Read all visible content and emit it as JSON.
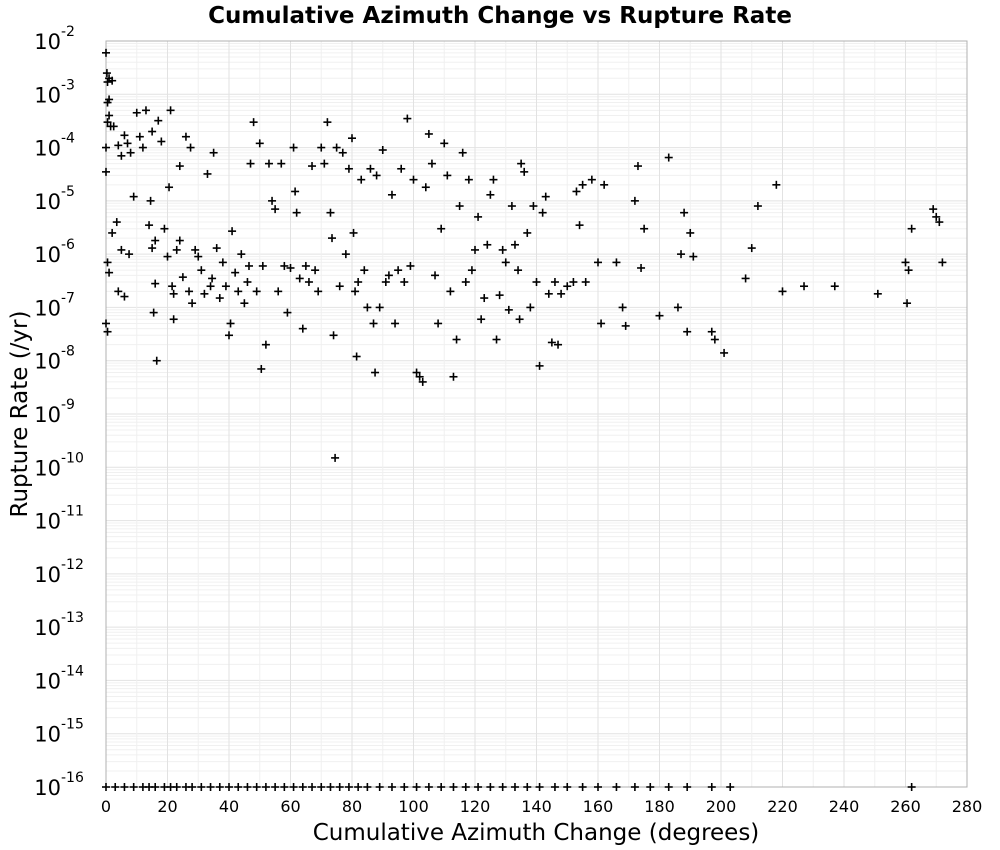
{
  "chart_data": {
    "type": "scatter",
    "title": "Cumulative Azimuth Change vs Rupture Rate",
    "xlabel": "Cumulative Azimuth Change (degrees)",
    "ylabel": "Rupture Rate (/yr)",
    "xlim": [
      0,
      280
    ],
    "ylim": [
      1e-16,
      0.01
    ],
    "y_scale": "log",
    "grid": true,
    "marker": "plus",
    "marker_color": "#000000",
    "x_ticks": [
      "0",
      "20",
      "40",
      "60",
      "80",
      "100",
      "120",
      "140",
      "160",
      "180",
      "200",
      "220",
      "240",
      "260",
      "280"
    ],
    "y_ticks": [
      {
        "base": "10",
        "exp": "-2"
      },
      {
        "base": "10",
        "exp": "-3"
      },
      {
        "base": "10",
        "exp": "-4"
      },
      {
        "base": "10",
        "exp": "-5"
      },
      {
        "base": "10",
        "exp": "-6"
      },
      {
        "base": "10",
        "exp": "-7"
      },
      {
        "base": "10",
        "exp": "-8"
      },
      {
        "base": "10",
        "exp": "-9"
      },
      {
        "base": "10",
        "exp": "-10"
      },
      {
        "base": "10",
        "exp": "-11"
      },
      {
        "base": "10",
        "exp": "-12"
      },
      {
        "base": "10",
        "exp": "-13"
      },
      {
        "base": "10",
        "exp": "-14"
      },
      {
        "base": "10",
        "exp": "-15"
      },
      {
        "base": "10",
        "exp": "-16"
      }
    ],
    "series": [
      {
        "points": [
          [
            0,
            0.006
          ],
          [
            0.3,
            0.0025
          ],
          [
            0.5,
            0.0017
          ],
          [
            1,
            0.002
          ],
          [
            0.5,
            0.0007
          ],
          [
            1,
            0.0004
          ],
          [
            0.5,
            0.0003
          ],
          [
            1.5,
            0.00025
          ],
          [
            2.5,
            0.00025
          ],
          [
            0,
            0.0001
          ],
          [
            0,
            3.5e-05
          ],
          [
            0.5,
            7e-07
          ],
          [
            1,
            4.5e-07
          ],
          [
            0,
            5e-08
          ],
          [
            0.5,
            3.5e-08
          ],
          [
            2,
            2.5e-06
          ],
          [
            3.5,
            4e-06
          ],
          [
            4,
            2e-07
          ],
          [
            5,
            1.2e-06
          ],
          [
            6,
            1.6e-07
          ],
          [
            1,
            0.0008
          ],
          [
            2,
            0.0018
          ],
          [
            4,
            0.00011
          ],
          [
            5,
            7e-05
          ],
          [
            6,
            0.00017
          ],
          [
            7,
            0.00012
          ],
          [
            7.5,
            1e-06
          ],
          [
            8,
            8e-05
          ],
          [
            9,
            1.2e-05
          ],
          [
            10,
            0.00045
          ],
          [
            11,
            0.00016
          ],
          [
            12,
            0.0001
          ],
          [
            13,
            0.0005
          ],
          [
            14,
            3.5e-06
          ],
          [
            14.5,
            1e-05
          ],
          [
            15,
            0.0002
          ],
          [
            15,
            1.3e-06
          ],
          [
            15.5,
            8e-08
          ],
          [
            16,
            2.8e-07
          ],
          [
            16.5,
            1e-08
          ],
          [
            16,
            1.8e-06
          ],
          [
            17,
            0.00032
          ],
          [
            18,
            0.00013
          ],
          [
            19,
            3e-06
          ],
          [
            20,
            9e-07
          ],
          [
            20.5,
            1.8e-05
          ],
          [
            21,
            0.0005
          ],
          [
            21.5,
            2.5e-07
          ],
          [
            22,
            1.8e-07
          ],
          [
            22,
            6e-08
          ],
          [
            23,
            1.2e-06
          ],
          [
            24,
            1.8e-06
          ],
          [
            24,
            4.5e-05
          ],
          [
            25,
            3.7e-07
          ],
          [
            26,
            0.00016
          ],
          [
            27,
            2e-07
          ],
          [
            27.5,
            0.0001
          ],
          [
            28,
            1.2e-07
          ],
          [
            29,
            1.2e-06
          ],
          [
            30,
            9e-07
          ],
          [
            31,
            5e-07
          ],
          [
            32,
            1.8e-07
          ],
          [
            33,
            3.2e-05
          ],
          [
            34,
            2.5e-07
          ],
          [
            34.5,
            3.5e-07
          ],
          [
            35,
            8e-05
          ],
          [
            36,
            1.3e-06
          ],
          [
            37,
            1.5e-07
          ],
          [
            38,
            7e-07
          ],
          [
            39,
            2.5e-07
          ],
          [
            40,
            3e-08
          ],
          [
            40.5,
            5e-08
          ],
          [
            41,
            2.7e-06
          ],
          [
            42,
            4.5e-07
          ],
          [
            43,
            2e-07
          ],
          [
            44,
            1e-06
          ],
          [
            45,
            1.2e-07
          ],
          [
            46,
            3e-07
          ],
          [
            46.5,
            6e-07
          ],
          [
            47,
            5e-05
          ],
          [
            48,
            0.0003
          ],
          [
            49,
            2e-07
          ],
          [
            50,
            0.00012
          ],
          [
            50.5,
            7e-09
          ],
          [
            51,
            6e-07
          ],
          [
            52,
            2e-08
          ],
          [
            53,
            5e-05
          ],
          [
            54,
            1e-05
          ],
          [
            55,
            7e-06
          ],
          [
            56,
            2e-07
          ],
          [
            57,
            5e-05
          ],
          [
            58,
            6e-07
          ],
          [
            59,
            8e-08
          ],
          [
            60,
            5.5e-07
          ],
          [
            61,
            0.0001
          ],
          [
            61.5,
            1.5e-05
          ],
          [
            62,
            6e-06
          ],
          [
            63,
            3.5e-07
          ],
          [
            64,
            4e-08
          ],
          [
            65,
            6e-07
          ],
          [
            66,
            3e-07
          ],
          [
            67,
            4.5e-05
          ],
          [
            68,
            5e-07
          ],
          [
            69,
            2e-07
          ],
          [
            70,
            0.0001
          ],
          [
            71,
            5e-05
          ],
          [
            72,
            0.0003
          ],
          [
            73,
            6e-06
          ],
          [
            73.5,
            2e-06
          ],
          [
            74,
            3e-08
          ],
          [
            74.5,
            1.5e-10
          ],
          [
            75,
            0.0001
          ],
          [
            76,
            2.5e-07
          ],
          [
            77,
            8e-05
          ],
          [
            78,
            1e-06
          ],
          [
            79,
            4e-05
          ],
          [
            80,
            0.00015
          ],
          [
            80.5,
            2.5e-06
          ],
          [
            81,
            2e-07
          ],
          [
            81.5,
            1.2e-08
          ],
          [
            82,
            3e-07
          ],
          [
            83,
            2.5e-05
          ],
          [
            84,
            5e-07
          ],
          [
            85,
            1e-07
          ],
          [
            86,
            4e-05
          ],
          [
            87,
            5e-08
          ],
          [
            87.5,
            6e-09
          ],
          [
            88,
            3e-05
          ],
          [
            89,
            1e-07
          ],
          [
            90,
            9e-05
          ],
          [
            91,
            3e-07
          ],
          [
            92,
            4e-07
          ],
          [
            93,
            1.3e-05
          ],
          [
            94,
            5e-08
          ],
          [
            95,
            5e-07
          ],
          [
            96,
            4e-05
          ],
          [
            97,
            3e-07
          ],
          [
            98,
            0.00035
          ],
          [
            99,
            6e-07
          ],
          [
            100,
            2.5e-05
          ],
          [
            101,
            6e-09
          ],
          [
            102,
            5e-09
          ],
          [
            103,
            4e-09
          ],
          [
            104,
            1.8e-05
          ],
          [
            105,
            0.00018
          ],
          [
            106,
            5e-05
          ],
          [
            107,
            4e-07
          ],
          [
            108,
            5e-08
          ],
          [
            109,
            3e-06
          ],
          [
            110,
            0.00012
          ],
          [
            111,
            3e-05
          ],
          [
            112,
            2e-07
          ],
          [
            113,
            5e-09
          ],
          [
            114,
            2.5e-08
          ],
          [
            115,
            8e-06
          ],
          [
            116,
            8e-05
          ],
          [
            117,
            3e-07
          ],
          [
            118,
            2.5e-05
          ],
          [
            119,
            5e-07
          ],
          [
            120,
            1.2e-06
          ],
          [
            121,
            5e-06
          ],
          [
            122,
            6e-08
          ],
          [
            123,
            1.5e-07
          ],
          [
            124,
            1.5e-06
          ],
          [
            125,
            1.3e-05
          ],
          [
            126,
            2.5e-05
          ],
          [
            127,
            2.5e-08
          ],
          [
            128,
            1.7e-07
          ],
          [
            129,
            1.2e-06
          ],
          [
            130,
            7e-07
          ],
          [
            131,
            9e-08
          ],
          [
            132,
            8e-06
          ],
          [
            133,
            1.5e-06
          ],
          [
            134,
            5e-07
          ],
          [
            134.5,
            6e-08
          ],
          [
            135,
            5e-05
          ],
          [
            136,
            3.5e-05
          ],
          [
            137,
            2.5e-06
          ],
          [
            138,
            1e-07
          ],
          [
            139,
            8e-06
          ],
          [
            140,
            3e-07
          ],
          [
            141,
            8e-09
          ],
          [
            142,
            6e-06
          ],
          [
            143,
            1.2e-05
          ],
          [
            144,
            1.8e-07
          ],
          [
            145,
            2.2e-08
          ],
          [
            146,
            3e-07
          ],
          [
            147,
            2e-08
          ],
          [
            148,
            1.8e-07
          ],
          [
            150,
            2.5e-07
          ],
          [
            152,
            3e-07
          ],
          [
            153,
            1.5e-05
          ],
          [
            154,
            3.5e-06
          ],
          [
            155,
            2e-05
          ],
          [
            156,
            3e-07
          ],
          [
            158,
            2.5e-05
          ],
          [
            160,
            7e-07
          ],
          [
            161,
            5e-08
          ],
          [
            162,
            2e-05
          ],
          [
            166,
            7e-07
          ],
          [
            168,
            1e-07
          ],
          [
            169,
            4.5e-08
          ],
          [
            172,
            1e-05
          ],
          [
            173,
            4.5e-05
          ],
          [
            174,
            5.5e-07
          ],
          [
            175,
            3e-06
          ],
          [
            180,
            7e-08
          ],
          [
            183,
            6.5e-05
          ],
          [
            186,
            1e-07
          ],
          [
            187,
            1e-06
          ],
          [
            188,
            6e-06
          ],
          [
            189,
            3.5e-08
          ],
          [
            190,
            2.5e-06
          ],
          [
            191,
            9e-07
          ],
          [
            197,
            3.5e-08
          ],
          [
            198,
            2.5e-08
          ],
          [
            201,
            1.4e-08
          ],
          [
            208,
            3.5e-07
          ],
          [
            210,
            1.3e-06
          ],
          [
            212,
            8e-06
          ],
          [
            218,
            2e-05
          ],
          [
            220,
            2e-07
          ],
          [
            227,
            2.5e-07
          ],
          [
            237,
            2.5e-07
          ],
          [
            251,
            1.8e-07
          ],
          [
            260,
            7e-07
          ],
          [
            260.5,
            1.2e-07
          ],
          [
            261,
            5e-07
          ],
          [
            262,
            3e-06
          ],
          [
            269,
            7e-06
          ],
          [
            270,
            5e-06
          ],
          [
            271,
            4e-06
          ],
          [
            272,
            7e-07
          ]
        ]
      },
      {
        "points": [
          [
            0,
            1e-16
          ],
          [
            3,
            1e-16
          ],
          [
            6,
            1e-16
          ],
          [
            9,
            1e-16
          ],
          [
            12,
            1e-16
          ],
          [
            14,
            1e-16
          ],
          [
            16,
            1e-16
          ],
          [
            19,
            1e-16
          ],
          [
            21,
            1e-16
          ],
          [
            23,
            1e-16
          ],
          [
            26,
            1e-16
          ],
          [
            28,
            1e-16
          ],
          [
            31,
            1e-16
          ],
          [
            34,
            1e-16
          ],
          [
            37,
            1e-16
          ],
          [
            40,
            1e-16
          ],
          [
            43,
            1e-16
          ],
          [
            46,
            1e-16
          ],
          [
            49,
            1e-16
          ],
          [
            52,
            1e-16
          ],
          [
            55,
            1e-16
          ],
          [
            58,
            1e-16
          ],
          [
            61,
            1e-16
          ],
          [
            64,
            1e-16
          ],
          [
            67,
            1e-16
          ],
          [
            70,
            1e-16
          ],
          [
            73,
            1e-16
          ],
          [
            76,
            1e-16
          ],
          [
            79,
            1e-16
          ],
          [
            82,
            1e-16
          ],
          [
            85,
            1e-16
          ],
          [
            89,
            1e-16
          ],
          [
            93,
            1e-16
          ],
          [
            97,
            1e-16
          ],
          [
            101,
            1e-16
          ],
          [
            105,
            1e-16
          ],
          [
            109,
            1e-16
          ],
          [
            113,
            1e-16
          ],
          [
            117,
            1e-16
          ],
          [
            121,
            1e-16
          ],
          [
            125,
            1e-16
          ],
          [
            129,
            1e-16
          ],
          [
            133,
            1e-16
          ],
          [
            137,
            1e-16
          ],
          [
            141,
            1e-16
          ],
          [
            146,
            1e-16
          ],
          [
            150,
            1e-16
          ],
          [
            155,
            1e-16
          ],
          [
            160,
            1e-16
          ],
          [
            166,
            1e-16
          ],
          [
            172,
            1e-16
          ],
          [
            177,
            1e-16
          ],
          [
            183,
            1e-16
          ],
          [
            189,
            1e-16
          ],
          [
            197,
            1e-16
          ],
          [
            203,
            1e-16
          ],
          [
            262,
            1e-16
          ]
        ]
      }
    ]
  }
}
